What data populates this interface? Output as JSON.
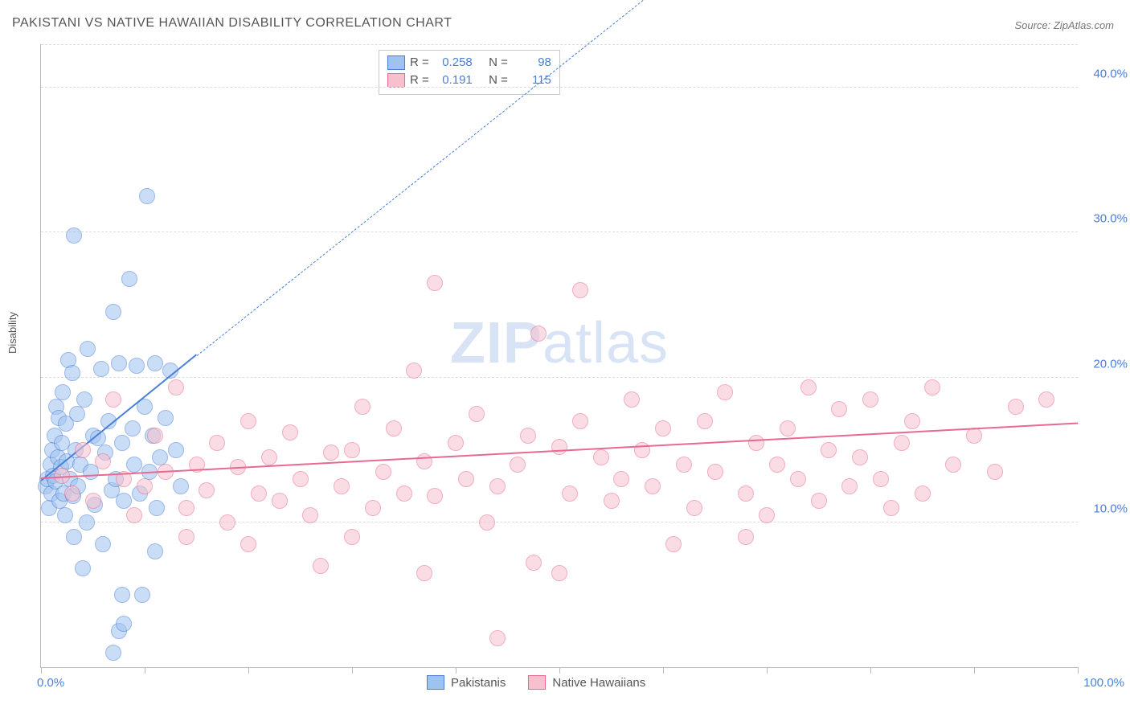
{
  "title": "PAKISTANI VS NATIVE HAWAIIAN DISABILITY CORRELATION CHART",
  "source": "Source: ZipAtlas.com",
  "ylabel": "Disability",
  "watermark": {
    "bold": "ZIP",
    "rest": "atlas"
  },
  "chart": {
    "type": "scatter",
    "xlim": [
      0,
      100
    ],
    "ylim": [
      0,
      43
    ],
    "xticks": [
      0,
      10,
      20,
      30,
      40,
      50,
      60,
      70,
      80,
      90,
      100
    ],
    "xlim_labels": {
      "min": "0.0%",
      "max": "100.0%"
    },
    "yticks": [
      {
        "v": 10,
        "label": "10.0%"
      },
      {
        "v": 20,
        "label": "20.0%"
      },
      {
        "v": 30,
        "label": "30.0%"
      },
      {
        "v": 40,
        "label": "40.0%"
      }
    ],
    "grid_color": "#dddddd",
    "background_color": "#ffffff",
    "marker_radius": 9,
    "marker_opacity": 0.55,
    "series": [
      {
        "key": "pakistanis",
        "label": "Pakistanis",
        "fill": "#9fc3f0",
        "stroke": "#4a7fd8",
        "R": "0.258",
        "N": "98",
        "trend": {
          "solid_from": [
            0,
            12.8
          ],
          "solid_to": [
            15,
            21.5
          ],
          "dash_to": [
            65,
            50
          ],
          "width": 2.2
        },
        "points": [
          [
            0.5,
            12.5
          ],
          [
            0.6,
            13.0
          ],
          [
            0.8,
            11.0
          ],
          [
            0.9,
            14.0
          ],
          [
            1.0,
            12.0
          ],
          [
            1.1,
            15.0
          ],
          [
            1.2,
            13.2
          ],
          [
            1.3,
            16.0
          ],
          [
            1.4,
            12.8
          ],
          [
            1.5,
            18.0
          ],
          [
            1.6,
            14.5
          ],
          [
            1.7,
            17.2
          ],
          [
            1.8,
            11.5
          ],
          [
            1.9,
            13.8
          ],
          [
            2.0,
            15.5
          ],
          [
            2.1,
            19.0
          ],
          [
            2.2,
            12.0
          ],
          [
            2.3,
            10.5
          ],
          [
            2.4,
            16.8
          ],
          [
            2.5,
            14.2
          ],
          [
            2.6,
            21.2
          ],
          [
            2.8,
            13.0
          ],
          [
            3.0,
            20.3
          ],
          [
            3.1,
            11.8
          ],
          [
            3.2,
            9.0
          ],
          [
            3.3,
            15.0
          ],
          [
            3.5,
            17.5
          ],
          [
            3.6,
            12.5
          ],
          [
            3.8,
            14.0
          ],
          [
            4.0,
            6.8
          ],
          [
            4.2,
            18.5
          ],
          [
            4.4,
            10.0
          ],
          [
            4.5,
            22.0
          ],
          [
            4.8,
            13.5
          ],
          [
            5.0,
            16.0
          ],
          [
            5.2,
            11.2
          ],
          [
            5.5,
            15.8
          ],
          [
            5.8,
            20.6
          ],
          [
            6.0,
            8.5
          ],
          [
            6.2,
            14.8
          ],
          [
            6.5,
            17.0
          ],
          [
            6.8,
            12.2
          ],
          [
            7.0,
            24.5
          ],
          [
            7.2,
            13.0
          ],
          [
            7.5,
            21.0
          ],
          [
            7.8,
            15.5
          ],
          [
            8.0,
            11.5
          ],
          [
            8.5,
            26.8
          ],
          [
            8.8,
            16.5
          ],
          [
            9.0,
            14.0
          ],
          [
            9.2,
            20.8
          ],
          [
            9.5,
            12.0
          ],
          [
            9.8,
            5.0
          ],
          [
            10.0,
            18.0
          ],
          [
            10.2,
            32.5
          ],
          [
            10.5,
            13.5
          ],
          [
            10.8,
            16.0
          ],
          [
            11.0,
            21.0
          ],
          [
            11.2,
            11.0
          ],
          [
            11.5,
            14.5
          ],
          [
            12.0,
            17.2
          ],
          [
            12.5,
            20.5
          ],
          [
            3.2,
            29.8
          ],
          [
            13.0,
            15.0
          ],
          [
            13.5,
            12.5
          ],
          [
            7.5,
            2.5
          ],
          [
            7.0,
            1.0
          ],
          [
            11.0,
            8.0
          ],
          [
            7.8,
            5.0
          ],
          [
            8.0,
            3.0
          ]
        ]
      },
      {
        "key": "hawaiians",
        "label": "Native Hawaiians",
        "fill": "#f7c0ce",
        "stroke": "#e86a90",
        "R": "0.191",
        "N": "115",
        "trend": {
          "solid_from": [
            0,
            13.0
          ],
          "solid_to": [
            100,
            16.8
          ],
          "width": 2.2
        },
        "points": [
          [
            2,
            13.2
          ],
          [
            3,
            12.0
          ],
          [
            4,
            15.0
          ],
          [
            5,
            11.5
          ],
          [
            6,
            14.2
          ],
          [
            7,
            18.5
          ],
          [
            8,
            13.0
          ],
          [
            9,
            10.5
          ],
          [
            10,
            12.5
          ],
          [
            11,
            16.0
          ],
          [
            12,
            13.5
          ],
          [
            13,
            19.3
          ],
          [
            14,
            11.0
          ],
          [
            15,
            14.0
          ],
          [
            16,
            12.2
          ],
          [
            17,
            15.5
          ],
          [
            18,
            10.0
          ],
          [
            19,
            13.8
          ],
          [
            20,
            17.0
          ],
          [
            21,
            12.0
          ],
          [
            22,
            14.5
          ],
          [
            23,
            11.5
          ],
          [
            24,
            16.2
          ],
          [
            25,
            13.0
          ],
          [
            26,
            10.5
          ],
          [
            27,
            7.0
          ],
          [
            28,
            14.8
          ],
          [
            29,
            12.5
          ],
          [
            30,
            15.0
          ],
          [
            31,
            18.0
          ],
          [
            32,
            11.0
          ],
          [
            33,
            13.5
          ],
          [
            34,
            16.5
          ],
          [
            35,
            12.0
          ],
          [
            36,
            20.5
          ],
          [
            37,
            14.2
          ],
          [
            38,
            11.8
          ],
          [
            38,
            26.5
          ],
          [
            40,
            15.5
          ],
          [
            41,
            13.0
          ],
          [
            42,
            17.5
          ],
          [
            43,
            10.0
          ],
          [
            44,
            12.5
          ],
          [
            44,
            2.0
          ],
          [
            46,
            14.0
          ],
          [
            47,
            16.0
          ],
          [
            47.5,
            7.2
          ],
          [
            48,
            23.0
          ],
          [
            50,
            15.2
          ],
          [
            51,
            12.0
          ],
          [
            52,
            17.0
          ],
          [
            52,
            26.0
          ],
          [
            54,
            14.5
          ],
          [
            55,
            11.5
          ],
          [
            56,
            13.0
          ],
          [
            57,
            18.5
          ],
          [
            58,
            15.0
          ],
          [
            59,
            12.5
          ],
          [
            60,
            16.5
          ],
          [
            62,
            14.0
          ],
          [
            63,
            11.0
          ],
          [
            64,
            17.0
          ],
          [
            65,
            13.5
          ],
          [
            66,
            19.0
          ],
          [
            68,
            12.0
          ],
          [
            69,
            15.5
          ],
          [
            70,
            10.5
          ],
          [
            71,
            14.0
          ],
          [
            72,
            16.5
          ],
          [
            73,
            13.0
          ],
          [
            74,
            19.3
          ],
          [
            75,
            11.5
          ],
          [
            76,
            15.0
          ],
          [
            77,
            17.8
          ],
          [
            78,
            12.5
          ],
          [
            79,
            14.5
          ],
          [
            80,
            18.5
          ],
          [
            81,
            13.0
          ],
          [
            82,
            11.0
          ],
          [
            83,
            15.5
          ],
          [
            84,
            17.0
          ],
          [
            85,
            12.0
          ],
          [
            86,
            19.3
          ],
          [
            88,
            14.0
          ],
          [
            90,
            16.0
          ],
          [
            92,
            13.5
          ],
          [
            94,
            18.0
          ],
          [
            97,
            18.5
          ],
          [
            68,
            9.0
          ],
          [
            61,
            8.5
          ],
          [
            37,
            6.5
          ],
          [
            30,
            9.0
          ],
          [
            14,
            9.0
          ],
          [
            20,
            8.5
          ],
          [
            50,
            6.5
          ]
        ]
      }
    ]
  },
  "stats_legend": {
    "rows": [
      {
        "series": "pakistanis",
        "R_label": "R =",
        "R": "0.258",
        "N_label": "N =",
        "N": "98"
      },
      {
        "series": "hawaiians",
        "R_label": "R =",
        "R": "0.191",
        "N_label": "N =",
        "N": "115"
      }
    ]
  }
}
